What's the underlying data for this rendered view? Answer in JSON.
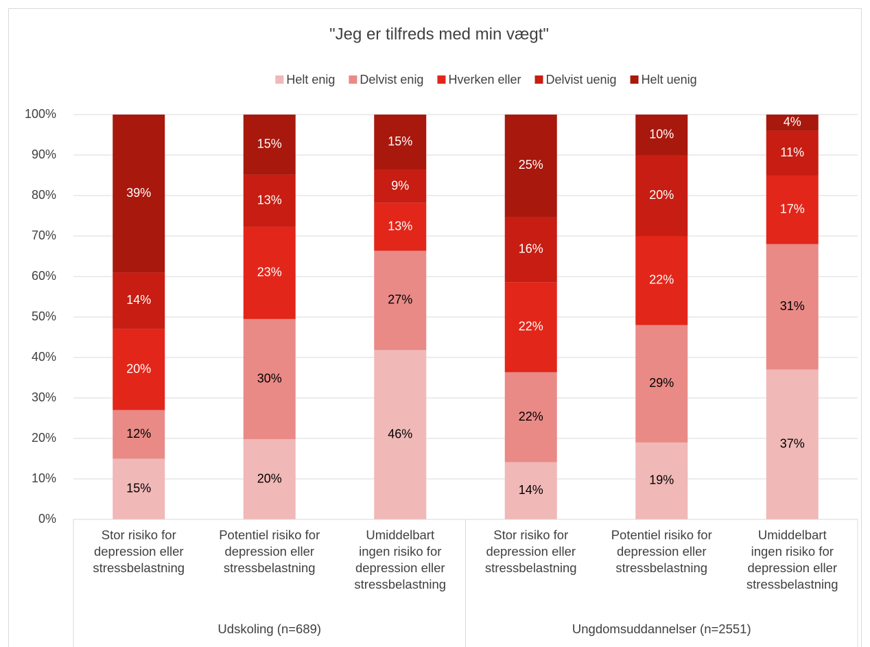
{
  "chart_data": {
    "type": "bar",
    "stacking": "percent",
    "title": "\"Jeg er tilfreds med min vægt\"",
    "groups": [
      {
        "name": "Udskoling (n=689)",
        "categories": [
          "Stor risiko for\ndepression eller\nstressbelastning",
          "Potentiel risiko for\ndepression eller\nstressbelastning",
          "Umiddelbart\ningen risiko for\ndepression eller\nstressbelastning"
        ]
      },
      {
        "name": "Ungdomsuddannelser (n=2551)",
        "categories": [
          "Stor risiko for\ndepression eller\nstressbelastning",
          "Potentiel risiko for\ndepression eller\nstressbelastning",
          "Umiddelbart\ningen risiko for\ndepression eller\nstressbelastning"
        ]
      }
    ],
    "series": [
      {
        "name": "Helt enig",
        "color": "#f0b8b7",
        "label_color": "#000000",
        "values": [
          15,
          20,
          46,
          14,
          19,
          37
        ],
        "value_labels": [
          "15%",
          "20%",
          "46%",
          "14%",
          "19%",
          "37%"
        ]
      },
      {
        "name": "Delvist enig",
        "color": "#e98a87",
        "label_color": "#000000",
        "values": [
          12,
          30,
          27,
          22,
          29,
          31
        ],
        "value_labels": [
          "12%",
          "30%",
          "27%",
          "22%",
          "29%",
          "31%"
        ]
      },
      {
        "name": "Hverken eller",
        "color": "#e2261a",
        "label_color": "#ffffff",
        "values": [
          20,
          23,
          13,
          22,
          22,
          17
        ],
        "value_labels": [
          "20%",
          "23%",
          "13%",
          "22%",
          "22%",
          "17%"
        ]
      },
      {
        "name": "Delvist uenig",
        "color": "#c71d12",
        "label_color": "#ffffff",
        "values": [
          14,
          13,
          9,
          16,
          20,
          11
        ],
        "value_labels": [
          "14%",
          "13%",
          "9%",
          "16%",
          "20%",
          "11%"
        ]
      },
      {
        "name": "Helt uenig",
        "color": "#a8180d",
        "label_color": "#ffffff",
        "values": [
          39,
          15,
          15,
          25,
          10,
          4
        ],
        "value_labels": [
          "39%",
          "15%",
          "15%",
          "25%",
          "10%",
          "4%"
        ]
      }
    ],
    "ylim": [
      0,
      100
    ],
    "yticks": [
      {
        "value": 0,
        "label": "0%"
      },
      {
        "value": 10,
        "label": "10%"
      },
      {
        "value": 20,
        "label": "20%"
      },
      {
        "value": 30,
        "label": "30%"
      },
      {
        "value": 40,
        "label": "40%"
      },
      {
        "value": 50,
        "label": "50%"
      },
      {
        "value": 60,
        "label": "60%"
      },
      {
        "value": 70,
        "label": "70%"
      },
      {
        "value": 80,
        "label": "80%"
      },
      {
        "value": 90,
        "label": "90%"
      },
      {
        "value": 100,
        "label": "100%"
      }
    ],
    "grid": true,
    "legend": "top"
  }
}
